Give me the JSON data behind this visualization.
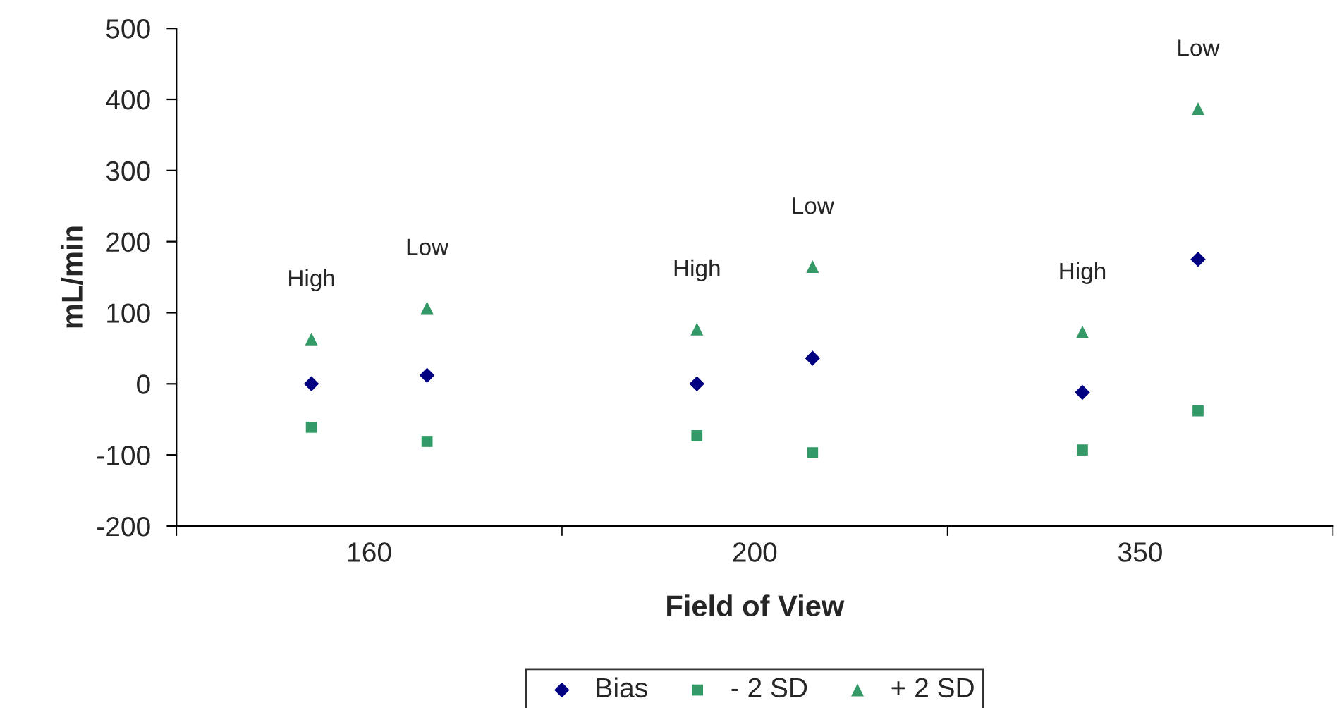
{
  "chart_data": {
    "type": "scatter",
    "xlabel": "Field of View",
    "ylabel": "mL/min",
    "categories": [
      "160",
      "200",
      "350"
    ],
    "ylim": [
      -200,
      500
    ],
    "yticks": [
      -200,
      -100,
      0,
      100,
      200,
      300,
      400,
      500
    ],
    "series": [
      {
        "name": "Bias",
        "color": "#000080",
        "marker": "diamond",
        "values": [
          0,
          0,
          -12
        ]
      },
      {
        "name": "- 2 SD",
        "color": "#339966",
        "marker": "square",
        "values": [
          -61,
          -73,
          -93
        ]
      },
      {
        "name": "+ 2 SD",
        "color": "#339966",
        "marker": "triangle",
        "values": [
          63,
          77,
          73
        ]
      },
      {
        "color": "#000080",
        "marker": "diamond",
        "values": [
          12,
          36,
          175
        ]
      },
      {
        "color": "#339966",
        "marker": "square",
        "values": [
          -81,
          -97,
          -38
        ]
      },
      {
        "color": "#339966",
        "marker": "triangle",
        "values": [
          107,
          165,
          387
        ]
      }
    ],
    "annotations": [
      "High",
      "Low",
      "High",
      "Low",
      "High",
      "Low"
    ],
    "grid": false,
    "legend": "bottom"
  }
}
